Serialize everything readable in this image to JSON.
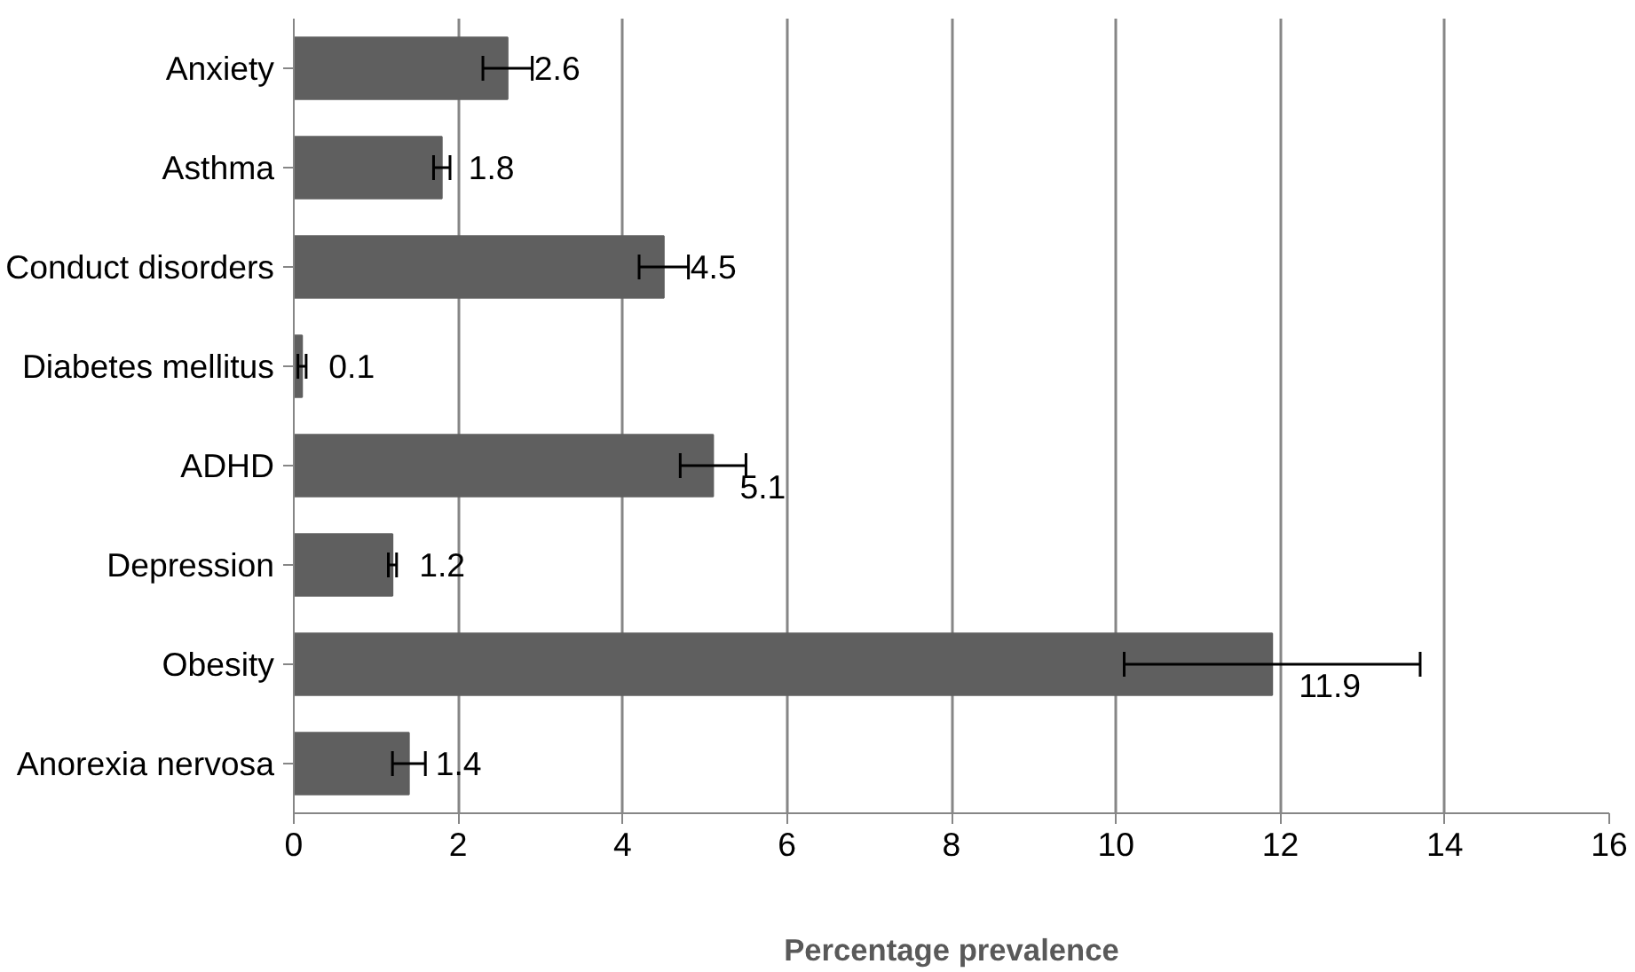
{
  "chart_data": {
    "type": "bar",
    "orientation": "horizontal",
    "xlabel": "Percentage prevalence",
    "categories": [
      "Anxiety",
      "Asthma",
      "Conduct disorders",
      "Diabetes mellitus",
      "ADHD",
      "Depression",
      "Obesity",
      "Anorexia nervosa"
    ],
    "values": [
      2.6,
      1.8,
      4.5,
      0.1,
      5.1,
      1.2,
      11.9,
      1.4
    ],
    "errors": [
      [
        2.3,
        2.9
      ],
      [
        1.7,
        1.9
      ],
      [
        4.2,
        4.8
      ],
      [
        0.05,
        0.15
      ],
      [
        4.7,
        5.5
      ],
      [
        1.15,
        1.25
      ],
      [
        10.1,
        13.7
      ],
      [
        1.2,
        1.6
      ]
    ],
    "color": "#5f5f5f",
    "data_labels": true,
    "xlim": [
      0,
      16
    ],
    "xticks": [
      0,
      2,
      4,
      6,
      8,
      10,
      12,
      14,
      16
    ],
    "grid": "x"
  }
}
